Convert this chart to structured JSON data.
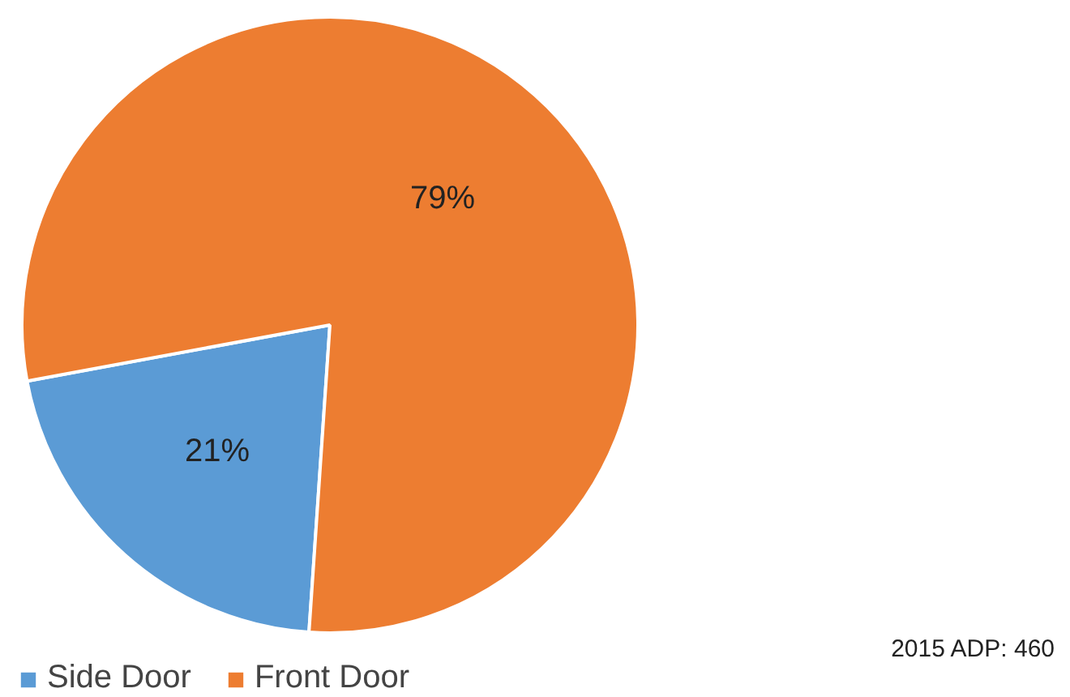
{
  "chart_data": {
    "type": "pie",
    "categories": [
      "Side Door",
      "Front Door"
    ],
    "values": [
      21,
      79
    ],
    "colors": [
      "#5b9bd5",
      "#ed7d31"
    ],
    "value_labels": [
      "21%",
      "79%"
    ],
    "legend": "bottom",
    "annotations": [
      "2015 ADP:  460"
    ]
  }
}
